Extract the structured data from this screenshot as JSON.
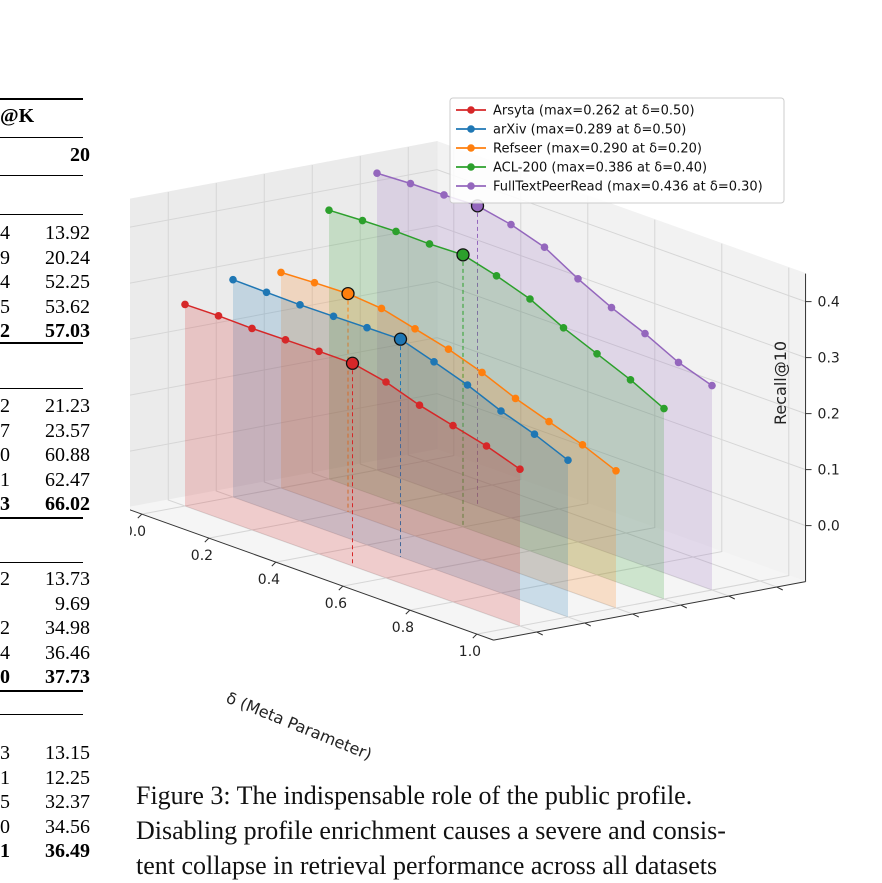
{
  "table_fragment": {
    "header_partial": "@K",
    "col_header": "20",
    "groups": [
      {
        "rows": [
          {
            "left": "4",
            "right": "13.92",
            "bold": false
          },
          {
            "left": "9",
            "right": "20.24",
            "bold": false
          },
          {
            "left": "4",
            "right": "52.25",
            "bold": false
          },
          {
            "left": "5",
            "right": "53.62",
            "bold": false
          },
          {
            "left": "2",
            "right": "57.03",
            "bold": true
          }
        ]
      },
      {
        "rows": [
          {
            "left": "2",
            "right": "21.23",
            "bold": false
          },
          {
            "left": "7",
            "right": "23.57",
            "bold": false
          },
          {
            "left": "0",
            "right": "60.88",
            "bold": false
          },
          {
            "left": "1",
            "right": "62.47",
            "bold": false
          },
          {
            "left": "3",
            "right": "66.02",
            "bold": true
          }
        ]
      },
      {
        "rows": [
          {
            "left": "2",
            "right": "13.73",
            "bold": false
          },
          {
            "left": "",
            "right": "9.69",
            "bold": false
          },
          {
            "left": "2",
            "right": "34.98",
            "bold": false
          },
          {
            "left": "4",
            "right": "36.46",
            "bold": false
          },
          {
            "left": "0",
            "right": "37.73",
            "bold": true
          }
        ]
      },
      {
        "rows": [
          {
            "left": "3",
            "right": "13.15",
            "bold": false
          },
          {
            "left": "1",
            "right": "12.25",
            "bold": false
          },
          {
            "left": "5",
            "right": "32.37",
            "bold": false
          },
          {
            "left": "0",
            "right": "34.56",
            "bold": false
          },
          {
            "left": "1",
            "right": "36.49",
            "bold": true
          }
        ]
      }
    ]
  },
  "chart_data": {
    "type": "line",
    "projection": "3d",
    "xlabel": "δ (Meta Parameter)",
    "ylabel": "",
    "zlabel": "Recall@10",
    "x_ticks": [
      "0.0",
      "0.2",
      "0.4",
      "0.6",
      "0.8",
      "1.0"
    ],
    "z_ticks": [
      "0.0",
      "0.1",
      "0.2",
      "0.3",
      "0.4"
    ],
    "xlim": [
      0,
      1
    ],
    "zlim": [
      0,
      0.45
    ],
    "grid": true,
    "legend_position": "top-right",
    "x": [
      0.0,
      0.1,
      0.2,
      0.3,
      0.4,
      0.5,
      0.6,
      0.7,
      0.8,
      0.9,
      1.0
    ],
    "series": [
      {
        "name": "Arsyta (max=0.262 at δ=0.50)",
        "color": "#d62728",
        "max_x": 0.5,
        "values": [
          0.26,
          0.261,
          0.26,
          0.261,
          0.262,
          0.262,
          0.25,
          0.23,
          0.215,
          0.2,
          0.18
        ]
      },
      {
        "name": "arXiv (max=0.289 at δ=0.50)",
        "color": "#1f77b4",
        "max_x": 0.5,
        "values": [
          0.288,
          0.287,
          0.286,
          0.287,
          0.288,
          0.289,
          0.27,
          0.25,
          0.225,
          0.205,
          0.18
        ]
      },
      {
        "name": "Refseer (max=0.290 at δ=0.20)",
        "color": "#ff7f0e",
        "max_x": 0.2,
        "values": [
          0.285,
          0.288,
          0.29,
          0.285,
          0.27,
          0.255,
          0.235,
          0.21,
          0.19,
          0.17,
          0.145
        ]
      },
      {
        "name": "ACL-200 (max=0.386 at δ=0.40)",
        "color": "#2ca02c",
        "max_x": 0.4,
        "values": [
          0.38,
          0.383,
          0.385,
          0.384,
          0.386,
          0.37,
          0.35,
          0.32,
          0.295,
          0.27,
          0.24
        ]
      },
      {
        "name": "FullTextPeerRead (max=0.436 at δ=0.30)",
        "color": "#9467bd",
        "max_x": 0.3,
        "values": [
          0.43,
          0.433,
          0.434,
          0.436,
          0.424,
          0.405,
          0.37,
          0.34,
          0.315,
          0.285,
          0.265
        ]
      }
    ]
  },
  "caption": {
    "line1": "Figure 3: The indispensable role of the public profile.",
    "line2": "Disabling profile enrichment causes a severe and consis-",
    "line3": "tent collapse in retrieval performance across all datasets"
  }
}
